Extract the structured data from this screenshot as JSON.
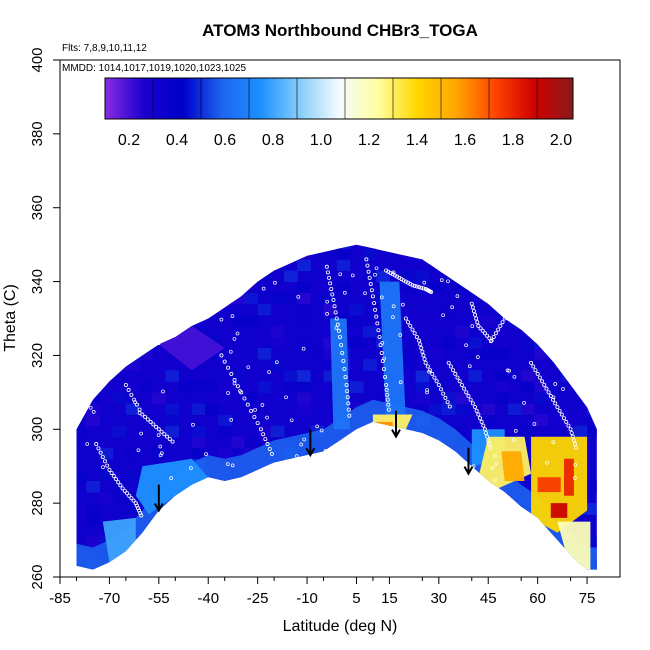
{
  "chart_data": {
    "type": "heatmap",
    "title": "ATOM3 Northbound CHBr3_TOGA",
    "flights_label": "Flts: 7,8,9,10,11,12",
    "dates_label": "MMDD: 1014,1017,1019,1020,1023,1025",
    "xlabel": "Latitude (deg N)",
    "ylabel": "Theta (C)",
    "xlim": [
      -85,
      85
    ],
    "ylim": [
      260,
      400
    ],
    "x_ticks": [
      -85,
      -70,
      -55,
      -40,
      -25,
      -10,
      5,
      15,
      30,
      45,
      60,
      75
    ],
    "y_ticks": [
      260,
      280,
      300,
      320,
      340,
      360,
      380,
      400
    ],
    "colorbar": {
      "range": [
        0.1,
        2.05
      ],
      "ticks": [
        0.2,
        0.4,
        0.6,
        0.8,
        1.0,
        1.2,
        1.4,
        1.6,
        1.8,
        2.0
      ],
      "tick_labels": [
        "0.2",
        "0.4",
        "0.6",
        "0.8",
        "1.0",
        "1.2",
        "1.4",
        "1.6",
        "1.8",
        "2.0"
      ],
      "colors": [
        "#8a2be2",
        "#1a00d0",
        "#0000c8",
        "#1e64f0",
        "#1e90ff",
        "#87cefa",
        "#f5fbff",
        "#ffffa0",
        "#ffd700",
        "#ffa500",
        "#ff4500",
        "#d00000",
        "#8b1a1a"
      ]
    },
    "domain_top": [
      [
        -80,
        300
      ],
      [
        -75,
        308
      ],
      [
        -70,
        313
      ],
      [
        -65,
        317
      ],
      [
        -60,
        320
      ],
      [
        -55,
        323
      ],
      [
        -50,
        325
      ],
      [
        -45,
        328
      ],
      [
        -40,
        330
      ],
      [
        -35,
        333
      ],
      [
        -30,
        336
      ],
      [
        -25,
        340
      ],
      [
        -20,
        343
      ],
      [
        -15,
        345
      ],
      [
        -10,
        347
      ],
      [
        -5,
        348
      ],
      [
        0,
        349
      ],
      [
        5,
        350
      ],
      [
        10,
        349
      ],
      [
        15,
        348
      ],
      [
        20,
        347
      ],
      [
        25,
        346
      ],
      [
        30,
        343
      ],
      [
        35,
        340
      ],
      [
        40,
        337
      ],
      [
        45,
        334
      ],
      [
        50,
        330
      ],
      [
        55,
        327
      ],
      [
        60,
        323
      ],
      [
        65,
        318
      ],
      [
        70,
        312
      ],
      [
        75,
        306
      ],
      [
        78,
        300
      ]
    ],
    "domain_bottom": [
      [
        78,
        262
      ],
      [
        75,
        262
      ],
      [
        72,
        264
      ],
      [
        68,
        268
      ],
      [
        64,
        272
      ],
      [
        60,
        276
      ],
      [
        55,
        279
      ],
      [
        50,
        283
      ],
      [
        45,
        286
      ],
      [
        40,
        290
      ],
      [
        35,
        294
      ],
      [
        30,
        297
      ],
      [
        25,
        299
      ],
      [
        20,
        300
      ],
      [
        15,
        301
      ],
      [
        10,
        302
      ],
      [
        5,
        300
      ],
      [
        0,
        297
      ],
      [
        -5,
        294
      ],
      [
        -10,
        293
      ],
      [
        -15,
        292
      ],
      [
        -20,
        291
      ],
      [
        -25,
        289
      ],
      [
        -30,
        287
      ],
      [
        -35,
        286
      ],
      [
        -40,
        287
      ],
      [
        -45,
        285
      ],
      [
        -50,
        282
      ],
      [
        -55,
        278
      ],
      [
        -60,
        272
      ],
      [
        -65,
        267
      ],
      [
        -70,
        264
      ],
      [
        -75,
        262
      ],
      [
        -80,
        263
      ]
    ],
    "regions": [
      {
        "value": 0.2,
        "poly": [
          [
            -55,
            323
          ],
          [
            -45,
            328
          ],
          [
            -35,
            322
          ],
          [
            -45,
            316
          ]
        ]
      },
      {
        "value": 0.65,
        "poly": [
          [
            -3,
            330
          ],
          [
            2,
            330
          ],
          [
            3,
            300
          ],
          [
            -2,
            300
          ]
        ]
      },
      {
        "value": 0.75,
        "poly": [
          [
            -60,
            290
          ],
          [
            -45,
            292
          ],
          [
            -40,
            287
          ],
          [
            -50,
            282
          ],
          [
            -58,
            277
          ],
          [
            -62,
            282
          ]
        ]
      },
      {
        "value": 0.8,
        "poly": [
          [
            -72,
            275
          ],
          [
            -62,
            276
          ],
          [
            -62,
            268
          ],
          [
            -70,
            264
          ]
        ]
      },
      {
        "value": 0.75,
        "poly": [
          [
            40,
            300
          ],
          [
            50,
            300
          ],
          [
            50,
            292
          ],
          [
            40,
            290
          ]
        ]
      },
      {
        "value": 0.65,
        "poly": [
          [
            12,
            340
          ],
          [
            18,
            340
          ],
          [
            20,
            302
          ],
          [
            14,
            302
          ]
        ]
      },
      {
        "value": 1.3,
        "poly": [
          [
            10,
            304
          ],
          [
            22,
            304
          ],
          [
            20,
            300
          ],
          [
            15,
            300.5
          ],
          [
            10,
            302
          ]
        ]
      },
      {
        "value": 1.6,
        "poly": [
          [
            11,
            302
          ],
          [
            16,
            302
          ],
          [
            16,
            300
          ],
          [
            12,
            300.5
          ]
        ]
      },
      {
        "value": 1.3,
        "poly": [
          [
            45,
            298
          ],
          [
            56,
            298
          ],
          [
            58,
            288
          ],
          [
            48,
            284
          ],
          [
            42,
            287
          ]
        ]
      },
      {
        "value": 1.55,
        "poly": [
          [
            49,
            294
          ],
          [
            55,
            294
          ],
          [
            56,
            286
          ],
          [
            50,
            286
          ]
        ]
      },
      {
        "value": 1.4,
        "poly": [
          [
            58,
            298
          ],
          [
            75,
            298
          ],
          [
            75,
            278
          ],
          [
            66,
            272
          ],
          [
            58,
            276
          ]
        ]
      },
      {
        "value": 1.75,
        "poly": [
          [
            60,
            287
          ],
          [
            67,
            287
          ],
          [
            67,
            283
          ],
          [
            60,
            283
          ]
        ]
      },
      {
        "value": 1.9,
        "poly": [
          [
            64,
            280
          ],
          [
            69,
            280
          ],
          [
            69,
            276
          ],
          [
            64,
            276
          ]
        ]
      },
      {
        "value": 1.8,
        "poly": [
          [
            68,
            292
          ],
          [
            71,
            292
          ],
          [
            71,
            282
          ],
          [
            68,
            282
          ]
        ]
      },
      {
        "value": 1.2,
        "poly": [
          [
            66,
            275
          ],
          [
            76,
            275
          ],
          [
            76,
            262
          ],
          [
            70,
            262
          ]
        ]
      }
    ],
    "profile_tracks": [
      [
        [
          -74,
          296
        ],
        [
          -70,
          289
        ],
        [
          -66,
          284
        ],
        [
          -62,
          280
        ],
        [
          -60,
          276
        ]
      ],
      [
        [
          -65,
          312
        ],
        [
          -60,
          304
        ],
        [
          -55,
          300
        ],
        [
          -50,
          296
        ]
      ],
      [
        [
          -36,
          320
        ],
        [
          -30,
          310
        ],
        [
          -24,
          300
        ],
        [
          -20,
          292
        ]
      ],
      [
        [
          -4,
          344
        ],
        [
          -2,
          335
        ],
        [
          0,
          325
        ],
        [
          2,
          312
        ],
        [
          3,
          302
        ]
      ],
      [
        [
          8,
          346
        ],
        [
          10,
          336
        ],
        [
          12,
          325
        ],
        [
          14,
          312
        ],
        [
          15,
          304
        ]
      ],
      [
        [
          14,
          343
        ],
        [
          18,
          341
        ],
        [
          22,
          339
        ],
        [
          26,
          338
        ],
        [
          28,
          337
        ]
      ],
      [
        [
          20,
          330
        ],
        [
          24,
          324
        ],
        [
          26,
          318
        ],
        [
          30,
          312
        ],
        [
          34,
          305
        ]
      ],
      [
        [
          33,
          318
        ],
        [
          37,
          312
        ],
        [
          41,
          306
        ],
        [
          44,
          300
        ],
        [
          46,
          294
        ]
      ],
      [
        [
          40,
          334
        ],
        [
          42,
          328
        ],
        [
          46,
          324
        ],
        [
          50,
          330
        ],
        [
          54,
          334
        ]
      ],
      [
        [
          58,
          318
        ],
        [
          62,
          312
        ],
        [
          66,
          306
        ],
        [
          70,
          300
        ],
        [
          72,
          294
        ]
      ]
    ],
    "arrows": [
      {
        "lat": -55,
        "top": 285,
        "bottom": 278
      },
      {
        "lat": -9,
        "top": 300,
        "bottom": 293
      },
      {
        "lat": 17,
        "top": 305,
        "bottom": 298
      },
      {
        "lat": 39,
        "top": 295,
        "bottom": 288
      }
    ]
  }
}
